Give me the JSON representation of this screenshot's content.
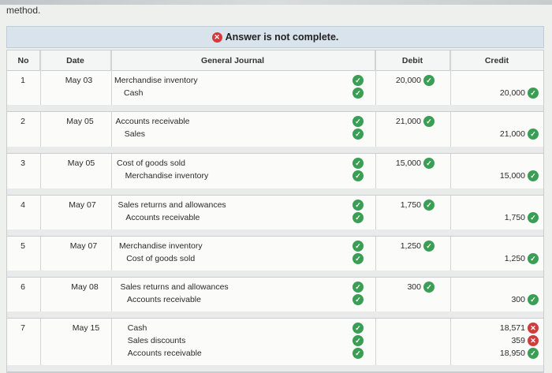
{
  "intro_text": "method.",
  "banner": {
    "icon": "x-icon",
    "text": "Answer is not complete."
  },
  "headers": {
    "no": "No",
    "date": "Date",
    "journal": "General Journal",
    "debit": "Debit",
    "credit": "Credit"
  },
  "entries": [
    {
      "no": "1",
      "date": "May 03",
      "lines": [
        {
          "account": "Merchandise inventory",
          "debit": "20,000",
          "debit_status": "correct",
          "credit": "",
          "credit_status": ""
        },
        {
          "account": "Cash",
          "debit": "",
          "debit_status": "",
          "credit": "20,000",
          "credit_status": "correct"
        }
      ]
    },
    {
      "no": "2",
      "date": "May 05",
      "lines": [
        {
          "account": "Accounts receivable",
          "debit": "21,000",
          "debit_status": "correct",
          "credit": "",
          "credit_status": ""
        },
        {
          "account": "Sales",
          "debit": "",
          "debit_status": "",
          "credit": "21,000",
          "credit_status": "correct"
        }
      ]
    },
    {
      "no": "3",
      "date": "May 05",
      "lines": [
        {
          "account": "Cost of goods sold",
          "debit": "15,000",
          "debit_status": "correct",
          "credit": "",
          "credit_status": ""
        },
        {
          "account": "Merchandise inventory",
          "debit": "",
          "debit_status": "",
          "credit": "15,000",
          "credit_status": "correct"
        }
      ]
    },
    {
      "no": "4",
      "date": "May 07",
      "lines": [
        {
          "account": "Sales returns and allowances",
          "debit": "1,750",
          "debit_status": "correct",
          "credit": "",
          "credit_status": ""
        },
        {
          "account": "Accounts receivable",
          "debit": "",
          "debit_status": "",
          "credit": "1,750",
          "credit_status": "correct"
        }
      ]
    },
    {
      "no": "5",
      "date": "May 07",
      "lines": [
        {
          "account": "Merchandise inventory",
          "debit": "1,250",
          "debit_status": "correct",
          "credit": "",
          "credit_status": ""
        },
        {
          "account": "Cost of goods sold",
          "debit": "",
          "debit_status": "",
          "credit": "1,250",
          "credit_status": "correct"
        }
      ]
    },
    {
      "no": "6",
      "date": "May 08",
      "lines": [
        {
          "account": "Sales returns and allowances",
          "debit": "300",
          "debit_status": "correct",
          "credit": "",
          "credit_status": ""
        },
        {
          "account": "Accounts receivable",
          "debit": "",
          "debit_status": "",
          "credit": "300",
          "credit_status": "correct"
        }
      ]
    },
    {
      "no": "7",
      "date": "May 15",
      "lines": [
        {
          "account": "Cash",
          "debit": "",
          "debit_status": "",
          "credit": "18,571",
          "credit_status": "incorrect"
        },
        {
          "account": "Sales discounts",
          "debit": "",
          "debit_status": "",
          "credit": "359",
          "credit_status": "incorrect"
        },
        {
          "account": "Accounts receivable",
          "debit": "",
          "debit_status": "",
          "credit": "18,950",
          "credit_status": "correct"
        }
      ]
    }
  ],
  "colors": {
    "correct": "#3a9e55",
    "incorrect": "#d23b3b",
    "banner_bg": "#d8e3ec"
  }
}
